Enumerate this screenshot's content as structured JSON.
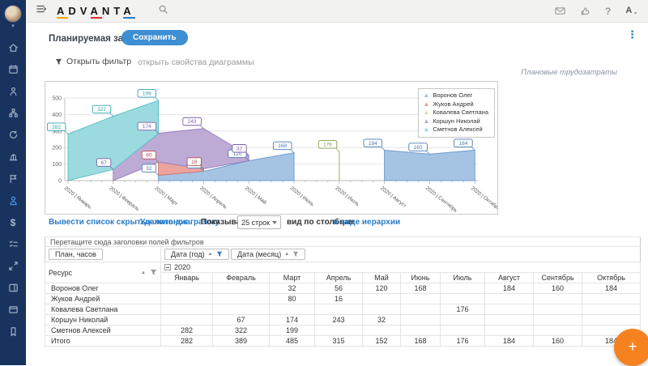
{
  "topbar": {
    "logo": "ADVANTA",
    "user_initial": "A",
    "help_glyph": "?",
    "kebab_glyph": "⋮"
  },
  "sidebar": {
    "items": [
      {
        "name": "home"
      },
      {
        "name": "calendar"
      },
      {
        "name": "employees"
      },
      {
        "name": "structure"
      },
      {
        "name": "processes"
      },
      {
        "name": "analytics"
      },
      {
        "name": "projects"
      },
      {
        "name": "resources",
        "active": true
      },
      {
        "name": "finance"
      },
      {
        "name": "tasks"
      },
      {
        "name": "expand"
      },
      {
        "name": "reports"
      },
      {
        "name": "dashboards"
      },
      {
        "name": "bookmarks"
      }
    ]
  },
  "page": {
    "title": "Планируемая загрузка",
    "save_button": "Сохранить",
    "open_filter": "Открыть фильтр",
    "open_chart_props": "открыть свойства диаграммы",
    "chart_caption": "Плановые трудозатраты"
  },
  "toolbar": {
    "show_hidden_columns": "Вывести список скрытых колонок",
    "delete_chart": "Удалить диаграмму",
    "show_per": "Показывать по",
    "rows_select": "25 строк",
    "view_by_columns": "вид по столбцам",
    "view_as_hierarchy": "в виде иерархии"
  },
  "pivot": {
    "drop_hint": "Перетащите сюда заголовки полей фильтров",
    "measure_chip": "План, часов",
    "col_chips": [
      "Дата (год)",
      "Дата (месяц)"
    ],
    "row_header": "Ресурс",
    "year_group": "2020",
    "columns": [
      "Январь",
      "Февраль",
      "Март",
      "Апрель",
      "Май",
      "Июнь",
      "Июль",
      "Август",
      "Сентябрь",
      "Октябрь"
    ],
    "rows": [
      {
        "name": "Воронов Олег",
        "values": [
          "",
          "",
          "32",
          "56",
          "120",
          "168",
          "",
          "184",
          "160",
          "184"
        ]
      },
      {
        "name": "Жуков Андрей",
        "values": [
          "",
          "",
          "80",
          "16",
          "",
          "",
          "",
          "",
          "",
          ""
        ]
      },
      {
        "name": "Ковалева Светлана",
        "values": [
          "",
          "",
          "",
          "",
          "",
          "",
          "176",
          "",
          "",
          ""
        ]
      },
      {
        "name": "Коршун Николай",
        "values": [
          "",
          "67",
          "174",
          "243",
          "32",
          "",
          "",
          "",
          "",
          ""
        ]
      },
      {
        "name": "Сметнов Алексей",
        "values": [
          "282",
          "322",
          "199",
          "",
          "",
          "",
          "",
          "",
          "",
          ""
        ]
      },
      {
        "name": "Итого",
        "values": [
          "282",
          "389",
          "485",
          "315",
          "152",
          "168",
          "176",
          "184",
          "160",
          "184"
        ]
      }
    ]
  },
  "chart_data": {
    "type": "area",
    "stacked": true,
    "title": "Плановые трудозатраты",
    "x": [
      "2020 | Январь",
      "2020 | Февраль",
      "2020 | Март",
      "2020 | Апрель",
      "2020 | Май",
      "2020 | Июнь",
      "2020 | Июль",
      "2020 | Август",
      "2020 | Сентябрь",
      "2020 | Октябрь"
    ],
    "ylim": [
      0,
      500
    ],
    "yticks": [
      0,
      100,
      200,
      300,
      400,
      500
    ],
    "grid": true,
    "legend_position": "top-right",
    "series": [
      {
        "name": "Воронов Олег",
        "fill": "#9dbfe2",
        "stroke": "#6f9dcf",
        "label": "#4a7ab5",
        "values": [
          null,
          null,
          32,
          56,
          120,
          168,
          null,
          184,
          160,
          184
        ]
      },
      {
        "name": "Жуков Андрей",
        "fill": "#e99c95",
        "stroke": "#d9776e",
        "label": "#c0504d",
        "values": [
          null,
          null,
          80,
          16,
          null,
          null,
          null,
          null,
          null,
          null
        ]
      },
      {
        "name": "Ковалева Светлана",
        "fill": "#c8e0a8",
        "stroke": "#a3c36e",
        "label": "#7c9a47",
        "values": [
          null,
          null,
          null,
          null,
          null,
          null,
          176,
          null,
          null,
          null
        ]
      },
      {
        "name": "Коршун Николай",
        "fill": "#b7a4d1",
        "stroke": "#9a82bf",
        "label": "#7b61a8",
        "values": [
          null,
          67,
          174,
          243,
          32,
          null,
          null,
          null,
          null,
          null
        ]
      },
      {
        "name": "Сметнов Алексей",
        "fill": "#92d8dc",
        "stroke": "#5fc0c6",
        "label": "#2fa3ad",
        "values": [
          282,
          322,
          199,
          null,
          null,
          null,
          null,
          null,
          null,
          null
        ]
      }
    ]
  }
}
